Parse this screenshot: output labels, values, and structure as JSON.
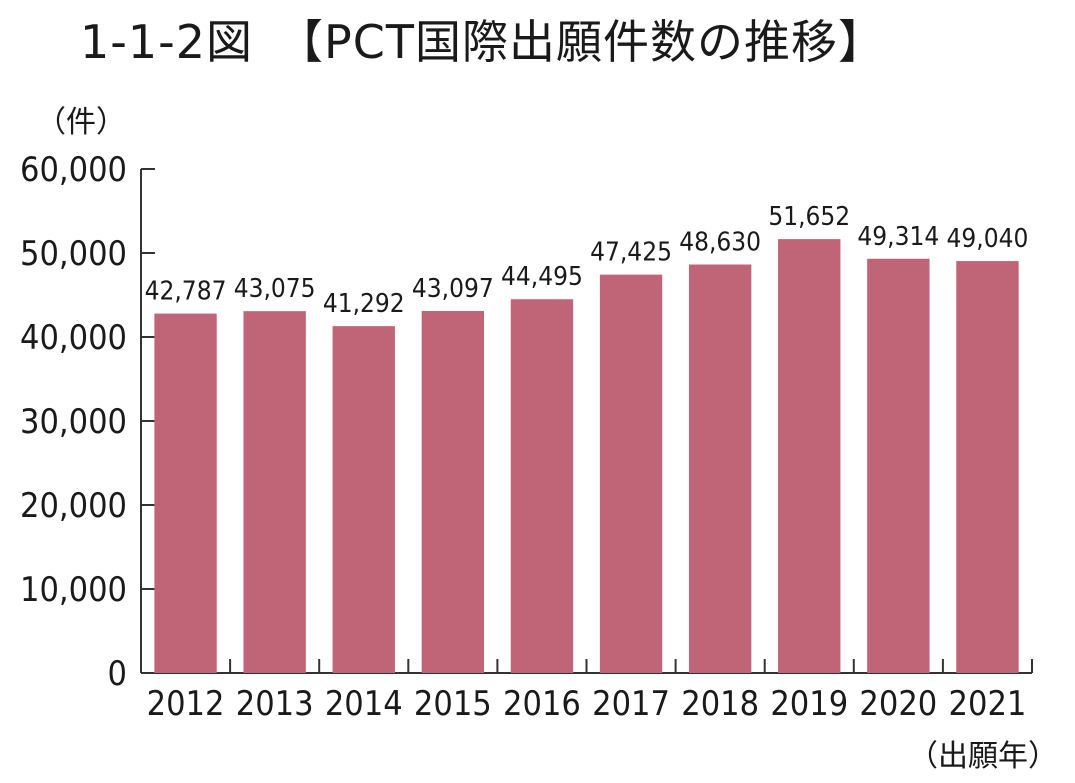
{
  "page_title": "1-1-2図　【PCT国際出願件数の推移】",
  "chart_data": {
    "type": "bar",
    "title": "1-1-2図　【PCT国際出願件数の推移】",
    "ylabel": "（件）",
    "xlabel": "（出願年）",
    "categories": [
      "2012",
      "2013",
      "2014",
      "2015",
      "2016",
      "2017",
      "2018",
      "2019",
      "2020",
      "2021"
    ],
    "values": [
      42787,
      43075,
      41292,
      43097,
      44495,
      47425,
      48630,
      51652,
      49314,
      49040
    ],
    "data_labels": [
      "42,787",
      "43,075",
      "41,292",
      "43,097",
      "44,495",
      "47,425",
      "48,630",
      "51,652",
      "49,314",
      "49,040"
    ],
    "ylim": [
      0,
      60000
    ],
    "yticks": [
      0,
      10000,
      20000,
      30000,
      40000,
      50000,
      60000
    ],
    "ytick_labels": [
      "0",
      "10,000",
      "20,000",
      "30,000",
      "40,000",
      "50,000",
      "60,000"
    ],
    "bar_color": "#c06477",
    "grid": false,
    "legend": "none"
  }
}
